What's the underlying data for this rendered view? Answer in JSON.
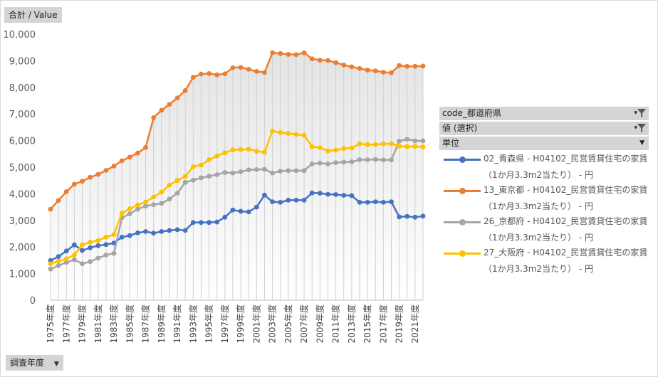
{
  "header": {
    "value_button": "合計 / Value"
  },
  "footer": {
    "axis_button": "調査年度"
  },
  "legend": {
    "filters": [
      "code_都道府県",
      "値 (選択)",
      "単位"
    ],
    "entries": [
      {
        "line1": "02_青森県 - H04102_民営賃貸住宅の家賃",
        "line2": "（1か月3.3m2当たり） - 円",
        "color": "#4472c4"
      },
      {
        "line1": "13_東京都 - H04102_民営賃貸住宅の家賃",
        "line2": "（1か月3.3m2当たり） - 円",
        "color": "#ed7d31"
      },
      {
        "line1": "26_京都府 - H04102_民営賃貸住宅の家賃",
        "line2": "（1か月3.3m2当たり） - 円",
        "color": "#a5a5a5"
      },
      {
        "line1": "27_大阪府 - H04102_民営賃貸住宅の家賃",
        "line2": "（1か月3.3m2当たり） - 円",
        "color": "#ffc000"
      }
    ]
  },
  "chart_data": {
    "type": "line",
    "title": "",
    "xlabel": "",
    "ylabel": "",
    "ylim": [
      0,
      10000
    ],
    "yticks": [
      0,
      1000,
      2000,
      3000,
      4000,
      5000,
      6000,
      7000,
      8000,
      9000,
      10000
    ],
    "ytick_labels": [
      "0",
      "1,000",
      "2,000",
      "3,000",
      "4,000",
      "5,000",
      "6,000",
      "7,000",
      "8,000",
      "9,000",
      "10,000"
    ],
    "x": [
      "1975年度",
      "1976年度",
      "1977年度",
      "1978年度",
      "1979年度",
      "1980年度",
      "1981年度",
      "1982年度",
      "1983年度",
      "1984年度",
      "1985年度",
      "1986年度",
      "1987年度",
      "1988年度",
      "1989年度",
      "1990年度",
      "1991年度",
      "1992年度",
      "1993年度",
      "1994年度",
      "1995年度",
      "1996年度",
      "1997年度",
      "1998年度",
      "1999年度",
      "2000年度",
      "2001年度",
      "2002年度",
      "2003年度",
      "2004年度",
      "2005年度",
      "2006年度",
      "2007年度",
      "2008年度",
      "2009年度",
      "2010年度",
      "2011年度",
      "2012年度",
      "2013年度",
      "2014年度",
      "2015年度",
      "2016年度",
      "2017年度",
      "2018年度",
      "2019年度",
      "2020年度",
      "2021年度",
      "2022年度"
    ],
    "x_labels_shown": [
      "1975年度",
      "1977年度",
      "1979年度",
      "1981年度",
      "1983年度",
      "1985年度",
      "1987年度",
      "1989年度",
      "1991年度",
      "1993年度",
      "1995年度",
      "1997年度",
      "1999年度",
      "2001年度",
      "2003年度",
      "2005年度",
      "2007年度",
      "2009年度",
      "2011年度",
      "2013年度",
      "2015年度",
      "2017年度",
      "2019年度",
      "2021年度"
    ],
    "series": [
      {
        "name": "02_青森県",
        "color": "#4472c4",
        "values": [
          1490,
          1640,
          1850,
          2080,
          1870,
          1970,
          2050,
          2090,
          2150,
          2370,
          2430,
          2530,
          2580,
          2520,
          2580,
          2620,
          2650,
          2620,
          2920,
          2920,
          2920,
          2940,
          3120,
          3390,
          3340,
          3320,
          3500,
          3950,
          3700,
          3680,
          3760,
          3760,
          3760,
          4030,
          4020,
          3980,
          3970,
          3940,
          3930,
          3680,
          3680,
          3700,
          3680,
          3700,
          3130,
          3150,
          3120,
          3160
        ]
      },
      {
        "name": "13_東京都",
        "color": "#ed7d31",
        "values": [
          3420,
          3750,
          4080,
          4360,
          4470,
          4620,
          4730,
          4880,
          5040,
          5240,
          5380,
          5530,
          5740,
          6860,
          7140,
          7360,
          7600,
          7880,
          8380,
          8500,
          8520,
          8470,
          8510,
          8740,
          8750,
          8680,
          8600,
          8560,
          9300,
          9270,
          9240,
          9230,
          9300,
          9070,
          9020,
          9010,
          8930,
          8840,
          8770,
          8710,
          8650,
          8620,
          8570,
          8550,
          8820,
          8790,
          8790,
          8800
        ]
      },
      {
        "name": "26_京都府",
        "color": "#a5a5a5",
        "values": [
          1170,
          1300,
          1420,
          1520,
          1370,
          1450,
          1580,
          1700,
          1760,
          3100,
          3250,
          3420,
          3540,
          3590,
          3640,
          3800,
          4020,
          4430,
          4510,
          4600,
          4660,
          4720,
          4800,
          4780,
          4830,
          4900,
          4910,
          4920,
          4780,
          4850,
          4870,
          4870,
          4870,
          5120,
          5150,
          5120,
          5170,
          5190,
          5200,
          5280,
          5280,
          5290,
          5270,
          5270,
          5980,
          6050,
          5990,
          5990
        ]
      },
      {
        "name": "27_大阪府",
        "color": "#ffc000",
        "values": [
          1370,
          1470,
          1560,
          1700,
          2080,
          2180,
          2240,
          2370,
          2470,
          3270,
          3440,
          3580,
          3690,
          3880,
          4060,
          4330,
          4500,
          4650,
          5020,
          5080,
          5280,
          5420,
          5540,
          5650,
          5660,
          5680,
          5600,
          5560,
          6360,
          6300,
          6270,
          6230,
          6200,
          5770,
          5730,
          5610,
          5640,
          5700,
          5720,
          5880,
          5850,
          5850,
          5880,
          5880,
          5790,
          5770,
          5780,
          5760
        ]
      }
    ]
  }
}
